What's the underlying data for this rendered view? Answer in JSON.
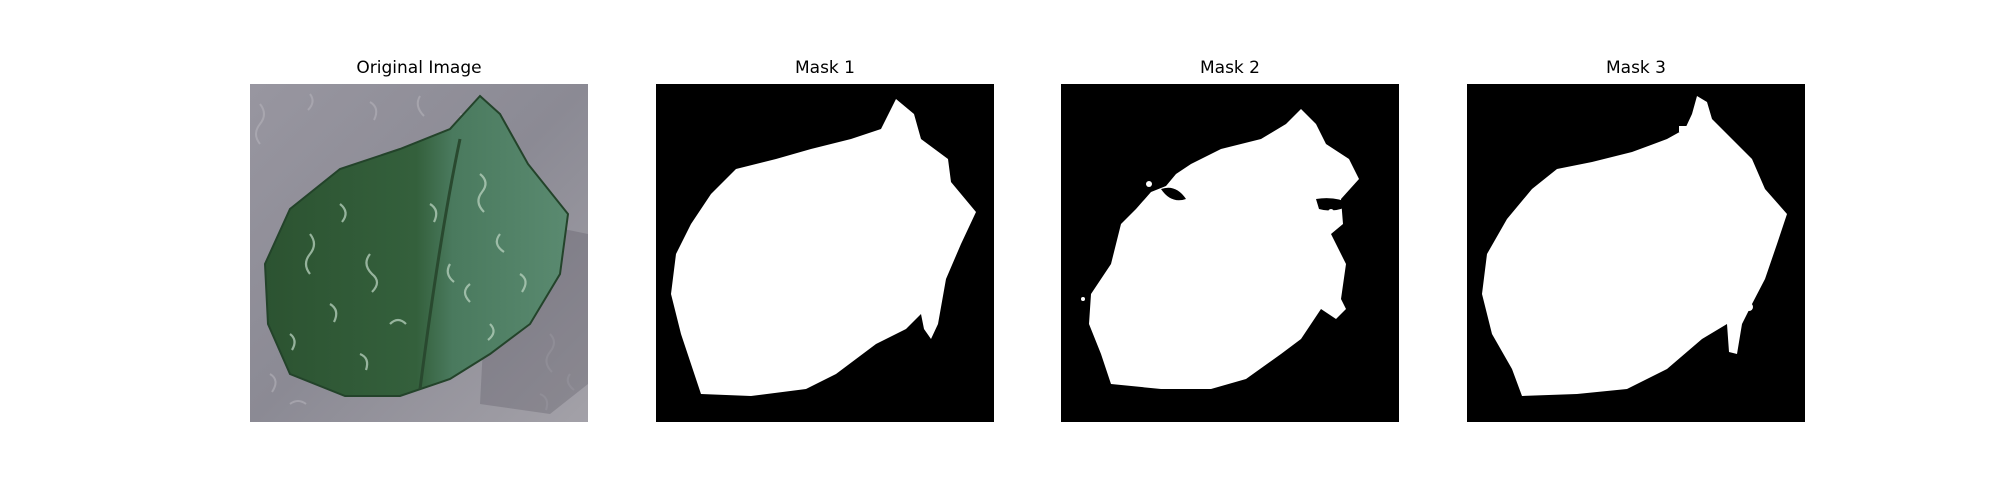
{
  "figure": {
    "panels": [
      {
        "id": "original",
        "title": "Original Image"
      },
      {
        "id": "mask1",
        "title": "Mask 1"
      },
      {
        "id": "mask2",
        "title": "Mask 2"
      },
      {
        "id": "mask3",
        "title": "Mask 3"
      }
    ]
  },
  "colors": {
    "mask_background": "#000000",
    "mask_foreground": "#ffffff",
    "photo_background": "#8f8e96",
    "leaf_dark": "#2f5a35",
    "leaf_light": "#4f7f63"
  }
}
